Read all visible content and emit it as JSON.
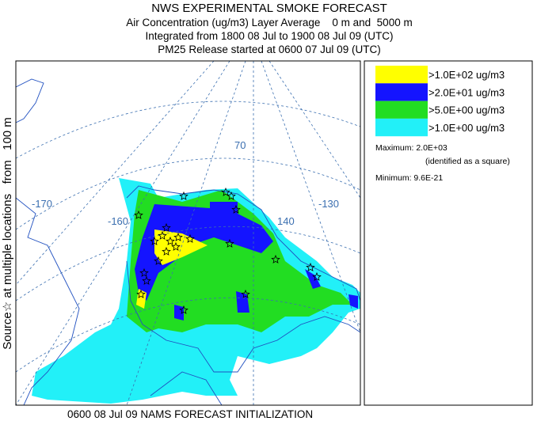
{
  "header": {
    "lines": [
      "NWS EXPERIMENTAL SMOKE FORECAST",
      "Air Concentration (ug/m3) Layer Average    0 m and  5000 m",
      "Integrated from 1800 08 Jul to 1900 08 Jul 09 (UTC)",
      "PM25 Release started at 0600 07 Jul 09 (UTC)"
    ]
  },
  "side_label": "Source☆ at multiple locations   from   100 m",
  "legend": {
    "items": [
      {
        "label": ">1.0E+02 ug/m3",
        "color": "#ffff00"
      },
      {
        "label": ">2.0E+01 ug/m3",
        "color": "#1414ff"
      },
      {
        "label": ">5.0E+00 ug/m3",
        "color": "#22dd22"
      },
      {
        "label": ">1.0E+00 ug/m3",
        "color": "#22f0f8"
      }
    ],
    "maximum": "Maximum: 2.0E+03",
    "maximum_note": "(identified as a square)",
    "minimum": "Minimum: 9.6E-21"
  },
  "map": {
    "labels": [
      "-170",
      "-160",
      "70",
      "140",
      "-130"
    ]
  },
  "footer": "0600 08 Jul 09 NAMS FORECAST INITIALIZATION"
}
